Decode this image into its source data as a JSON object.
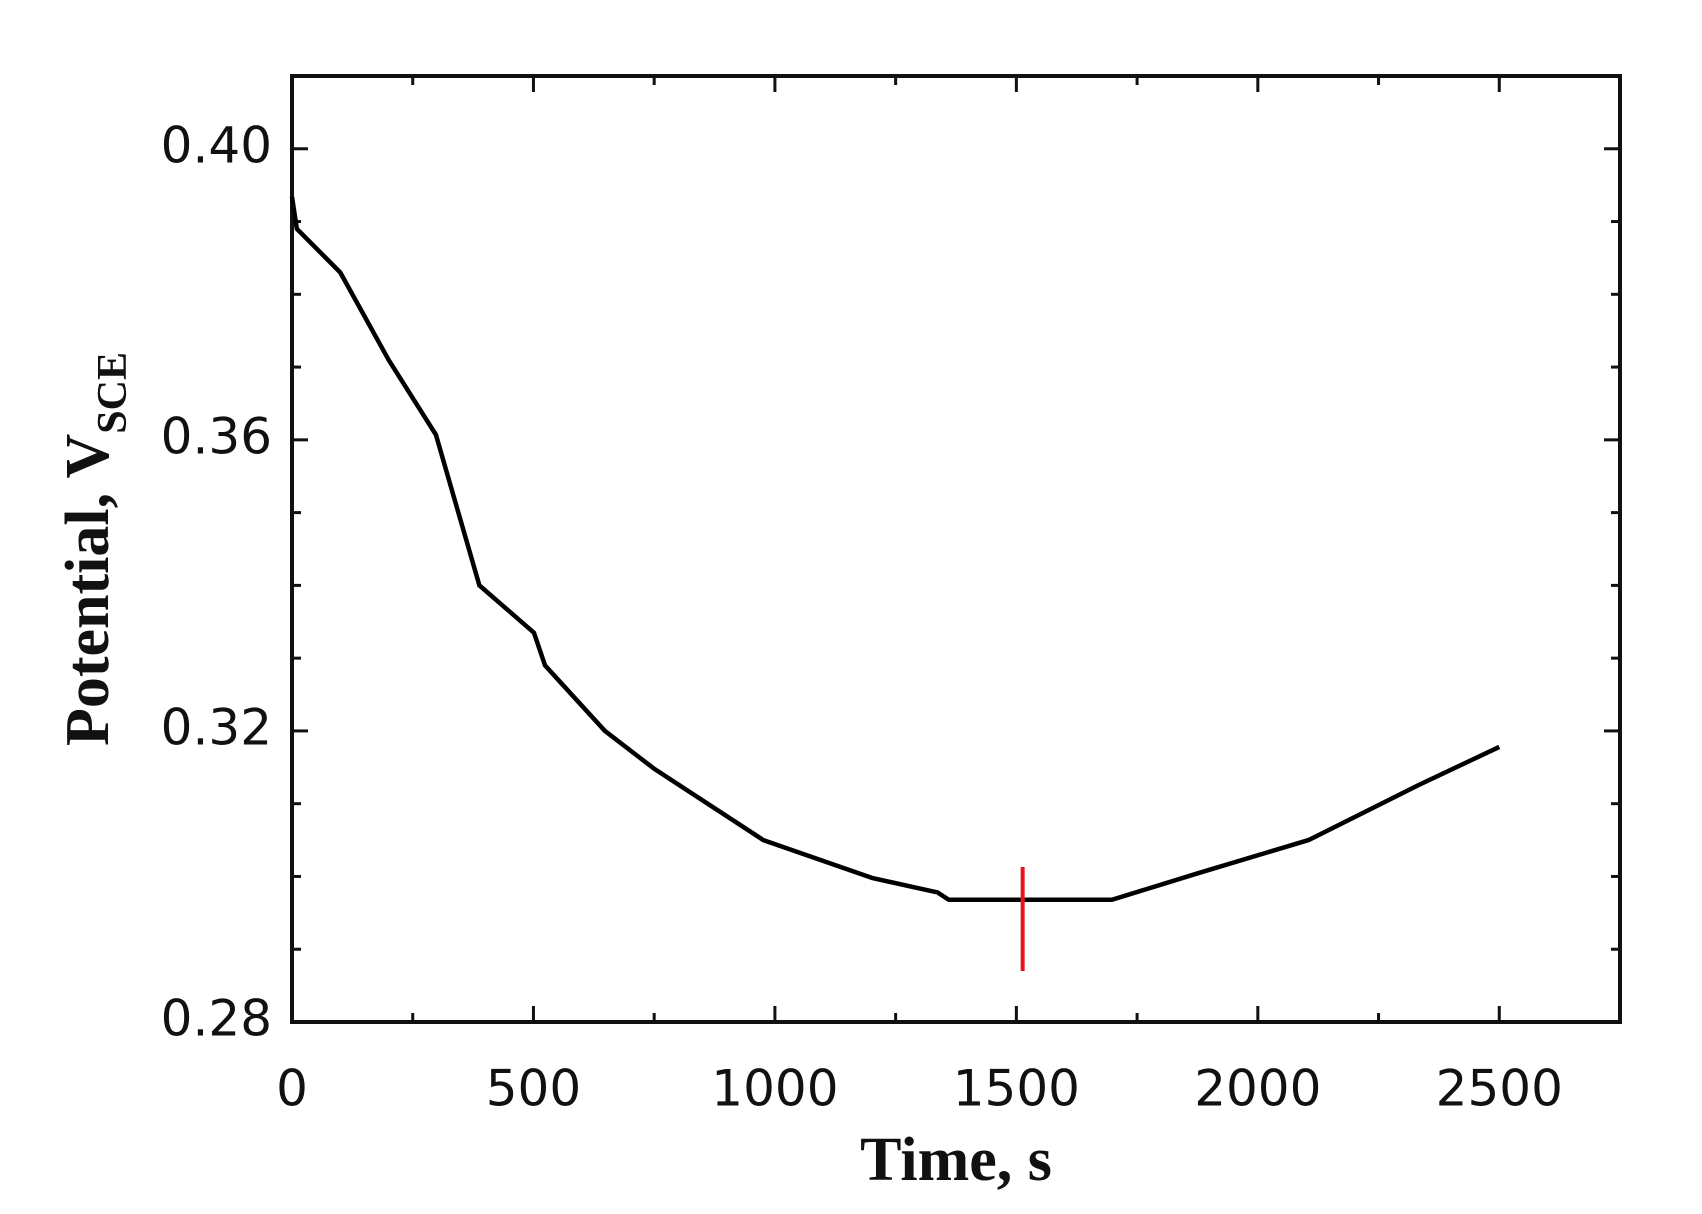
{
  "chart_data": {
    "type": "line",
    "x_label": "Time, s",
    "y_label": "Potential, V",
    "y_label_subscript": "SCE",
    "series": [
      {
        "color": "#000000",
        "x": [
          0,
          10,
          100,
          200,
          298,
          388,
          501,
          524,
          648,
          750,
          976,
          1201,
          1337,
          1360,
          1698,
          1879,
          2105,
          2331,
          2500
        ],
        "values": [
          0.3934,
          0.389,
          0.383,
          0.371,
          0.3607,
          0.34,
          0.3335,
          0.329,
          0.32,
          0.3148,
          0.305,
          0.2998,
          0.2978,
          0.2968,
          0.2968,
          0.3005,
          0.305,
          0.3125,
          0.3178
        ]
      }
    ],
    "marker": {
      "x": 1513,
      "y": [
        0.287,
        0.3013
      ],
      "color": "#e8141c"
    },
    "xlim": [
      0,
      2750
    ],
    "ylim": [
      0.28,
      0.41
    ],
    "xticks": [
      0,
      500,
      1000,
      1500,
      2000,
      2500
    ],
    "xminorticks": [
      250,
      750,
      1250,
      1750,
      2250,
      2750
    ],
    "yticks": [
      {
        "value": 0.28,
        "label": "0.28"
      },
      {
        "value": 0.32,
        "label": "0.32"
      },
      {
        "value": 0.36,
        "label": "0.36"
      },
      {
        "value": 0.4,
        "label": "0.40"
      }
    ],
    "yminorticks": [
      0.29,
      0.3,
      0.31,
      0.33,
      0.34,
      0.35,
      0.37,
      0.38,
      0.39
    ]
  }
}
